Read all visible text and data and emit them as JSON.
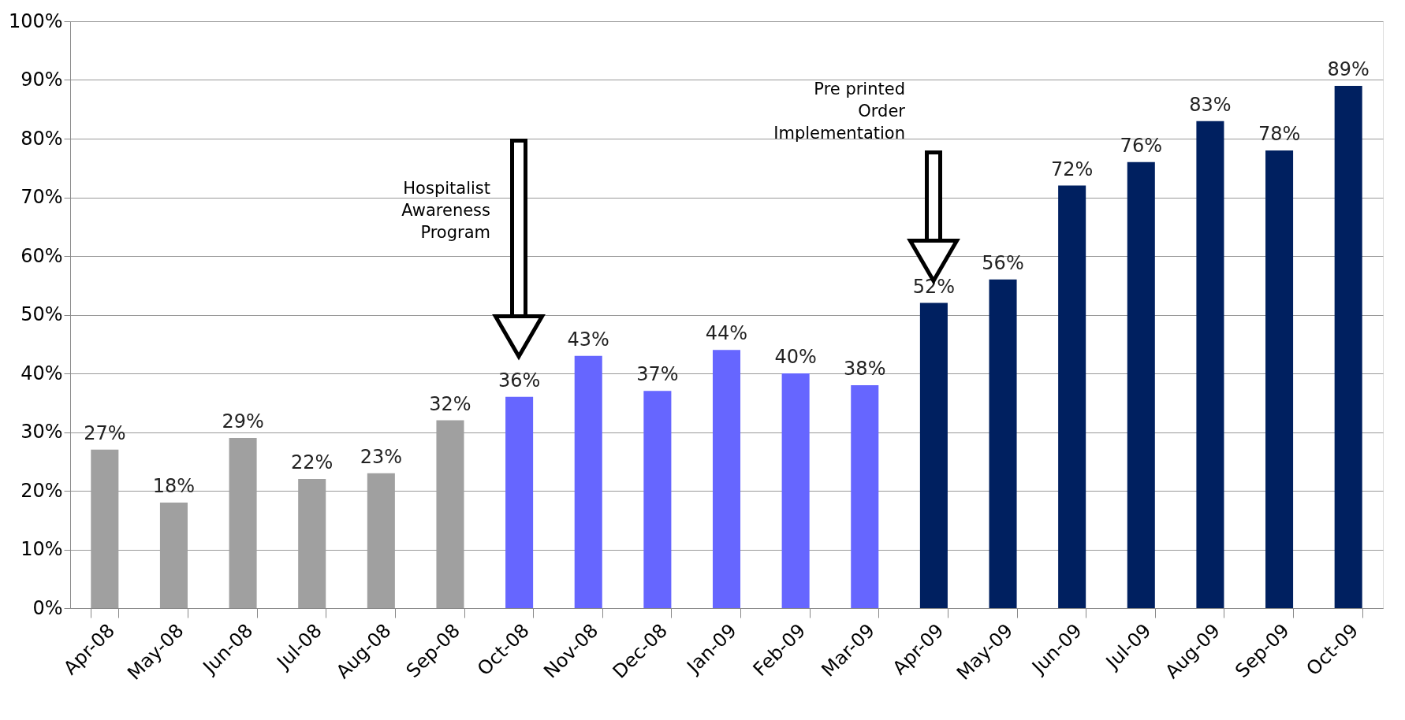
{
  "chart_data": {
    "type": "bar",
    "categories": [
      "Apr-08",
      "May-08",
      "Jun-08",
      "Jul-08",
      "Aug-08",
      "Sep-08",
      "Oct-08",
      "Nov-08",
      "Dec-08",
      "Jan-09",
      "Feb-09",
      "Mar-09",
      "Apr-09",
      "May-09",
      "Jun-09",
      "Jul-09",
      "Aug-09",
      "Sep-09",
      "Oct-09"
    ],
    "values": [
      27,
      18,
      29,
      22,
      23,
      32,
      36,
      43,
      37,
      44,
      40,
      38,
      52,
      56,
      72,
      76,
      83,
      78,
      89
    ],
    "colors": [
      "#a0a0a0",
      "#a0a0a0",
      "#a0a0a0",
      "#a0a0a0",
      "#a0a0a0",
      "#a0a0a0",
      "#6666ff",
      "#6666ff",
      "#6666ff",
      "#6666ff",
      "#6666ff",
      "#6666ff",
      "#002060",
      "#002060",
      "#002060",
      "#002060",
      "#002060",
      "#002060",
      "#002060"
    ],
    "value_labels": [
      "27%",
      "18%",
      "29%",
      "22%",
      "23%",
      "32%",
      "36%",
      "43%",
      "37%",
      "44%",
      "40%",
      "38%",
      "52%",
      "56%",
      "72%",
      "76%",
      "83%",
      "78%",
      "89%"
    ],
    "ylim": [
      0,
      100
    ],
    "yticks": [
      {
        "value": 0,
        "label": "0%"
      },
      {
        "value": 10,
        "label": "10%"
      },
      {
        "value": 20,
        "label": "20%"
      },
      {
        "value": 30,
        "label": "30%"
      },
      {
        "value": 40,
        "label": "40%"
      },
      {
        "value": 50,
        "label": "50%"
      },
      {
        "value": 60,
        "label": "60%"
      },
      {
        "value": 70,
        "label": "70%"
      },
      {
        "value": 80,
        "label": "80%"
      },
      {
        "value": 90,
        "label": "90%"
      },
      {
        "value": 100,
        "label": "100%"
      }
    ],
    "grid": "y",
    "annotations": [
      "Hospitalist\nAwareness\nProgram",
      "Pre printed\nOrder\nImplementation"
    ]
  }
}
